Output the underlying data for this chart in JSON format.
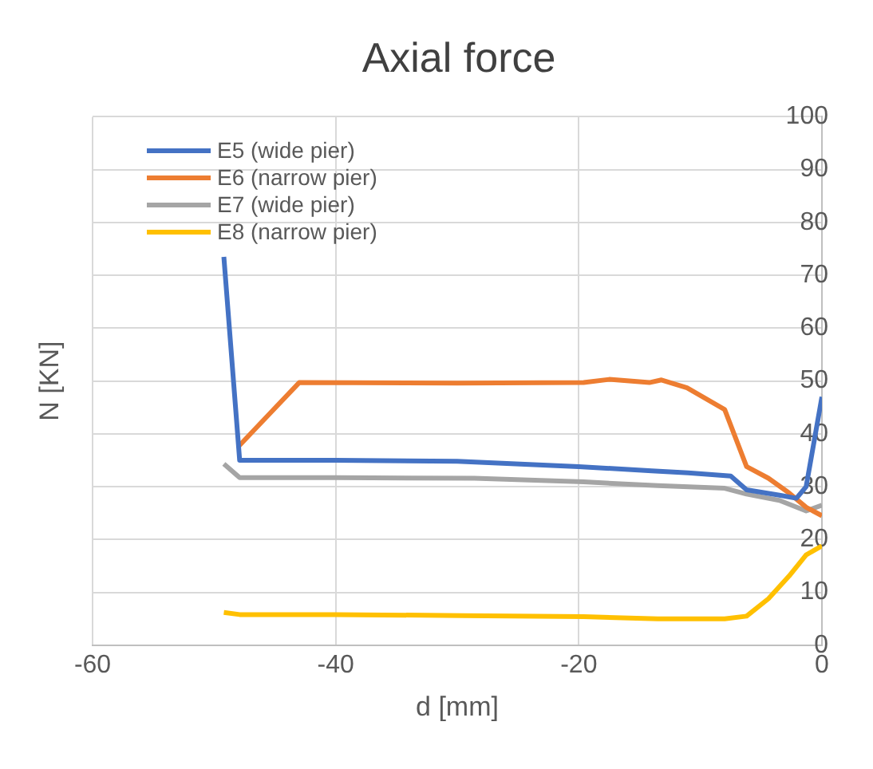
{
  "chart_data": {
    "type": "line",
    "title": "Axial force",
    "xlabel": "d [mm]",
    "ylabel": "N [KN]",
    "xlim": [
      -60,
      0
    ],
    "xticks": [
      -60,
      -40,
      -20,
      0
    ],
    "ylim": [
      0,
      100
    ],
    "yticks": [
      0,
      10,
      20,
      30,
      40,
      50,
      60,
      70,
      80,
      90,
      100
    ],
    "grid": true,
    "legend": "top left",
    "marker": "none",
    "line_style": "solid",
    "series": [
      {
        "name": "E5 (wide pier)",
        "color": "#4472c4",
        "x": [
          -49.2,
          -47.9,
          -40,
          -30,
          -20,
          -14,
          -11,
          -7.5,
          -6.2,
          -3.5,
          -2.1,
          -1.3,
          0
        ],
        "values": [
          73.5,
          35,
          35,
          34.8,
          33.8,
          33,
          32.6,
          32,
          29.4,
          28.4,
          27.8,
          30,
          47
        ]
      },
      {
        "name": "E6 (narrow pier)",
        "color": "#ed7d31",
        "x": [
          -48,
          -43,
          -30,
          -19.6,
          -17.5,
          -14.2,
          -13.2,
          -11.1,
          -8,
          -6.2,
          -4.4,
          -2.7,
          -1.3,
          0
        ],
        "values": [
          37.6,
          49.7,
          49.6,
          49.7,
          50.3,
          49.7,
          50.2,
          48.7,
          44.6,
          33.8,
          31.6,
          28.8,
          26.1,
          24.5
        ]
      },
      {
        "name": "E7 (wide pier)",
        "color": "#a5a5a5",
        "x": [
          -49.2,
          -47.9,
          -40,
          -28.6,
          -19.6,
          -13.5,
          -8,
          -6.2,
          -3.5,
          -1.3,
          0
        ],
        "values": [
          34.3,
          31.7,
          31.7,
          31.6,
          30.9,
          30.2,
          29.7,
          28.6,
          27.4,
          25.4,
          26.5
        ]
      },
      {
        "name": "E8 (narrow pier)",
        "color": "#ffc000",
        "x": [
          -49.2,
          -47.9,
          -40,
          -29.6,
          -19.6,
          -13.5,
          -8,
          -6.2,
          -4.4,
          -2.7,
          -1.3,
          0
        ],
        "values": [
          6.2,
          5.8,
          5.8,
          5.6,
          5.4,
          5,
          5,
          5.5,
          8.8,
          13.1,
          17.1,
          18.8
        ]
      }
    ]
  }
}
